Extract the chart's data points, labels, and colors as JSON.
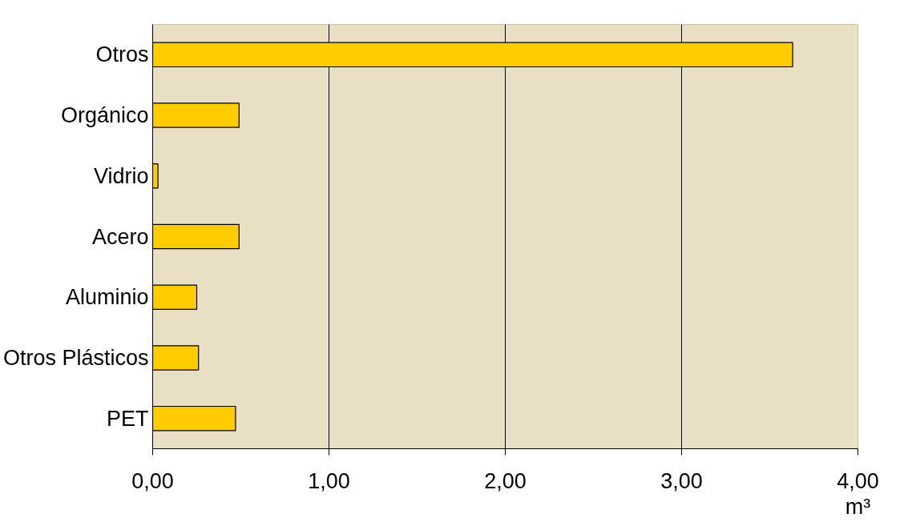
{
  "chart_data": {
    "type": "bar",
    "orientation": "horizontal",
    "xlabel": "m³",
    "categories": [
      "Otros",
      "Orgánico",
      "Vidrio",
      "Acero",
      "Aluminio",
      "Otros Plásticos",
      "PET"
    ],
    "values": [
      3.63,
      0.49,
      0.03,
      0.49,
      0.25,
      0.26,
      0.47
    ],
    "color": "#ffcc00",
    "xlim": [
      0,
      4
    ],
    "xticks": [
      {
        "value": 0,
        "label": "0,00"
      },
      {
        "value": 1,
        "label": "1,00"
      },
      {
        "value": 2,
        "label": "2,00"
      },
      {
        "value": 3,
        "label": "3,00"
      },
      {
        "value": 4,
        "label": "4,00"
      }
    ],
    "grid": "x"
  }
}
